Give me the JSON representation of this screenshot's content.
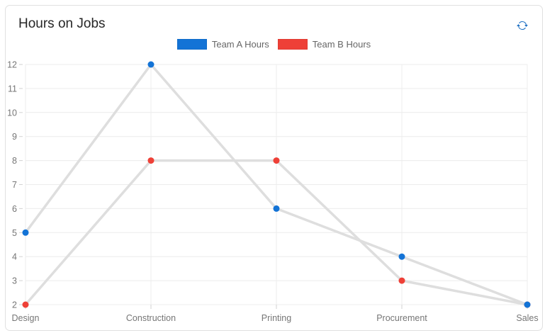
{
  "card": {
    "title": "Hours on Jobs"
  },
  "toolbar": {
    "refresh_icon": "refresh-icon",
    "refresh_color": "#1b6ec2"
  },
  "legend": {
    "position": "top-center",
    "items": [
      {
        "label": "Team A Hours",
        "color": "#1373d6"
      },
      {
        "label": "Team B Hours",
        "color": "#ee4037"
      }
    ]
  },
  "chart_data": {
    "type": "line",
    "title": "Hours on Jobs",
    "categories": [
      "Design",
      "Construction",
      "Printing",
      "Procurement",
      "Sales"
    ],
    "series": [
      {
        "name": "Team A Hours",
        "color": "#1373d6",
        "values": [
          5,
          12,
          6,
          4,
          2
        ]
      },
      {
        "name": "Team B Hours",
        "color": "#ee4037",
        "values": [
          2,
          8,
          8,
          3,
          2
        ]
      }
    ],
    "xlabel": "",
    "ylabel": "",
    "ylim": [
      2,
      12
    ],
    "yticks": [
      2,
      3,
      4,
      5,
      6,
      7,
      8,
      9,
      10,
      11,
      12
    ],
    "grid": true,
    "legend_position": "top",
    "line_color": "#dedede",
    "grid_color": "#ececec",
    "tick_color": "#d2d2d2",
    "marker_radius": 4.5
  }
}
